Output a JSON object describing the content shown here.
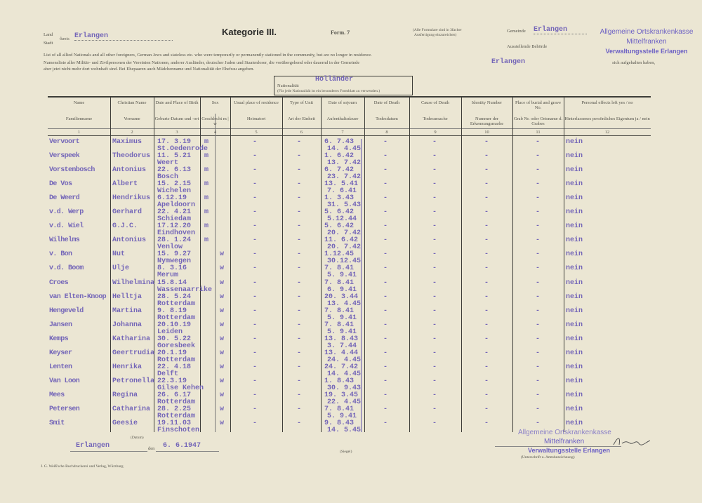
{
  "header": {
    "land_label": "Land",
    "kreis_label": "-kreis",
    "stadt_label": "Stadt",
    "kreis_value": "Erlangen",
    "title": "Kategorie III.",
    "form": "Form. 7",
    "note_line1": "(Alle Formulare sind in 3facher",
    "note_line2": "Ausfertigung einzureichen)",
    "gemeinde_label": "Gemeinde",
    "gemeinde_value": "Erlangen",
    "behoerde_label": "Ausstellende Behörde",
    "stamp_line1": "Allgemeine Ortskrankenkasse",
    "stamp_line2": "Mittelfranken",
    "stamp_line3": "Verwaltungsstelle Erlangen",
    "intro_en": "List of all allied Nationals and all other foreigners, German Jews and stateless etc. who were temporarily or permanently stationed in the community, but are no longer in residence.",
    "intro_de1": "Namensliste aller Militär- und Zivilpersonen der Vereinten Nationen, anderer Ausländer, deutscher Juden und Staatenloser, die vorübergehend oder dauernd in der Gemeinde",
    "intro_de_gemeinde": "Erlangen",
    "intro_de_end": "sich aufgehalten haben,",
    "intro_de2": "aber jetzt nicht mehr dort wohnhaft sind. Bei Ehepaaren auch Mädchenname und Nationalität der Ehefrau angeben.",
    "nationality_label": "Nationalität",
    "nationality_value": "Holländer",
    "nationality_note": "(Für jede Nationalität ist ein besonderes Formblatt zu verwenden.)"
  },
  "columns": [
    {
      "en": "Name",
      "de": "Familienname",
      "no": "1"
    },
    {
      "en": "Christian Name",
      "de": "Vorname",
      "no": "2"
    },
    {
      "en": "Date and Place of Birth",
      "de": "Geburts-Datum und -ort",
      "no": "3"
    },
    {
      "en": "Sex",
      "de": "Geschlecht m | w",
      "no": "4"
    },
    {
      "en": "Usual place of residence",
      "de": "Heimatort",
      "no": "5"
    },
    {
      "en": "Type of Unit",
      "de": "Art der Einheit",
      "no": "6"
    },
    {
      "en": "Date of sojourn",
      "de": "Aufenthaltsdauer",
      "no": "7"
    },
    {
      "en": "Date of Death",
      "de": "Todesdatum",
      "no": "8"
    },
    {
      "en": "Cause of Death",
      "de": "Todesursache",
      "no": "9"
    },
    {
      "en": "Identity Number",
      "de": "Nummer der Erkennungsmarke",
      "no": "10"
    },
    {
      "en": "Place of burial and grave No.",
      "de": "Grab Nr. oder Ortsname d. Grabes",
      "no": "11"
    },
    {
      "en": "Personal effects left yes / no",
      "de": "Hinterlassenes persönliches Eigentum ja / nein",
      "no": "12"
    }
  ],
  "rows": [
    {
      "name": "Vervoort",
      "first": "Maximus",
      "dob": "17. 3.19",
      "pob": "St.Oedenrode",
      "sex": "m",
      "from": "6. 7.43",
      "to": "14. 4.45",
      "effects": "nein"
    },
    {
      "name": "Verspeek",
      "first": "Theodorus",
      "dob": "11. 5.21",
      "pob": "Weert",
      "sex": "m",
      "from": "1. 6.42",
      "to": "13. 7.42",
      "effects": "nein"
    },
    {
      "name": "Vorstenbosch",
      "first": "Antonius",
      "dob": "22. 6.13",
      "pob": "Bosch",
      "sex": "m",
      "from": "6. 7.42",
      "to": "23. 7.42",
      "effects": "nein"
    },
    {
      "name": "De Vos",
      "first": "Albert",
      "dob": "15. 2.15",
      "pob": "Wichelen",
      "sex": "m",
      "from": "13. 5.41",
      "to": "7. 6.41",
      "effects": "nein"
    },
    {
      "name": "De Weerd",
      "first": "Hendrikus",
      "dob": "6.12.19",
      "pob": "Apeldoorn",
      "sex": "m",
      "from": "1. 3.43",
      "to": "31. 5.43",
      "effects": "nein"
    },
    {
      "name": "v.d. Werp",
      "first": "Gerhard",
      "dob": "22. 4.21",
      "pob": "Schiedam",
      "sex": "m",
      "from": "5. 6.42",
      "to": "5.12.44",
      "effects": "nein"
    },
    {
      "name": "v.d. Wiel",
      "first": "G.J.C.",
      "dob": "17.12.20",
      "pob": "Eindhoven",
      "sex": "m",
      "from": "5. 6.42",
      "to": "20. 7.42",
      "effects": "nein"
    },
    {
      "name": "Wilhelms",
      "first": "Antonius",
      "dob": "28. 1.24",
      "pob": "Venlow",
      "sex": "m",
      "from": "11. 6.42",
      "to": "20. 7.42",
      "effects": "nein"
    },
    {
      "name": "v. Bon",
      "first": "Nut",
      "dob": "15. 9.27",
      "pob": "Nymwegen",
      "sex": "w",
      "from": "1.12.45",
      "to": "30.12.45",
      "effects": "nein"
    },
    {
      "name": "v.d. Boom",
      "first": "Ulje",
      "dob": "8. 3.16",
      "pob": "Merum",
      "sex": "w",
      "from": "7. 8.41",
      "to": "5. 9.41",
      "effects": "nein"
    },
    {
      "name": "Croes",
      "first": "Wilhelmina",
      "dob": "15.8.14",
      "pob": "Wassenaarrike",
      "sex": "w",
      "from": "7. 8.41",
      "to": "6. 9.41",
      "effects": "nein"
    },
    {
      "name": "van Elten-Knoop",
      "first": "Helltja",
      "dob": "28. 5.24",
      "pob": "Rotterdam",
      "sex": "w",
      "from": "20. 3.44",
      "to": "13. 4.45",
      "effects": "nein"
    },
    {
      "name": "Hengeveld",
      "first": "Martina",
      "dob": "9. 8.19",
      "pob": "Rotterdam",
      "sex": "w",
      "from": "7. 8.41",
      "to": "5. 9.41",
      "effects": "nein"
    },
    {
      "name": "Jansen",
      "first": "Johanna",
      "dob": "20.10.19",
      "pob": "Leiden",
      "sex": "w",
      "from": "7. 8.41",
      "to": "5. 9.41",
      "effects": "nein"
    },
    {
      "name": "Kemps",
      "first": "Katharina",
      "dob": "30. 5.22",
      "pob": "Goresbeek",
      "sex": "w",
      "from": "13. 8.43",
      "to": "3. 7.44",
      "effects": "nein"
    },
    {
      "name": "Keyser",
      "first": "Geertrudia",
      "dob": "20.1.19",
      "pob": "Rotterdam",
      "sex": "w",
      "from": "13. 4.44",
      "to": "24. 4.45",
      "effects": "nein"
    },
    {
      "name": "Lenten",
      "first": "Henrika",
      "dob": "22. 4.18",
      "pob": "Delft",
      "sex": "w",
      "from": "24. 7.42",
      "to": "14. 4.45",
      "effects": "nein"
    },
    {
      "name": "Van Loon",
      "first": "Petronella",
      "dob": "22.3.19",
      "pob": "Gilse Kehen",
      "sex": "w",
      "from": "1. 8.43",
      "to": "30. 9.43",
      "effects": "nein"
    },
    {
      "name": "Mees",
      "first": "Regina",
      "dob": "26. 6.17",
      "pob": "Rotterdam",
      "sex": "w",
      "from": "19. 3.45",
      "to": "22. 4.45",
      "effects": "nein"
    },
    {
      "name": "Petersen",
      "first": "Catharina",
      "dob": "28. 2.25",
      "pob": "Rotterdam",
      "sex": "w",
      "from": "7. 8.41",
      "to": "5. 9.41",
      "effects": "nein"
    },
    {
      "name": "Smit",
      "first": "Geesie",
      "dob": "19.11.03",
      "pob": "Finschoten",
      "sex": "w",
      "from": "9. 8.43",
      "to": "14. 5.45",
      "effects": "nein"
    }
  ],
  "empty_mark": "-",
  "footer": {
    "date_label": "(Datum)",
    "place": "Erlangen",
    "den": "den",
    "date": "6. 6.1947",
    "seal_label": "(Siegel)",
    "signature_label": "(Unterschrift u. Amtsbezeichnung)",
    "stamp_line1": "Allgemeine Ortskrankenkasse",
    "stamp_line2": "Mittelfranken",
    "stamp_line3": "Verwaltungsstelle Erlangen",
    "printer": "J. G. Weiß'sche Buchdruckerei und Verlag, Würzburg"
  },
  "colors": {
    "paper": "#ebe6d3",
    "typewriter_ink": "#7466b8",
    "stamp_ink": "#6b5fc4"
  }
}
